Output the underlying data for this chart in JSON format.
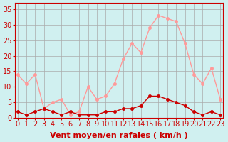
{
  "hours": [
    0,
    1,
    2,
    3,
    4,
    5,
    6,
    7,
    8,
    9,
    10,
    11,
    12,
    13,
    14,
    15,
    16,
    17,
    18,
    19,
    20,
    21,
    22,
    23
  ],
  "wind_avg": [
    2,
    1,
    2,
    3,
    2,
    1,
    2,
    1,
    1,
    1,
    2,
    2,
    3,
    3,
    4,
    7,
    7,
    6,
    5,
    4,
    2,
    1,
    2,
    1
  ],
  "wind_gust": [
    14,
    11,
    14,
    3,
    5,
    6,
    1,
    2,
    10,
    6,
    7,
    11,
    19,
    24,
    21,
    29,
    33,
    32,
    31,
    24,
    14,
    11,
    16,
    6
  ],
  "line_color_avg": "#cc0000",
  "line_color_gust": "#ff9999",
  "bg_color": "#d0f0f0",
  "grid_color": "#aaaaaa",
  "xlabel": "Vent moyen/en rafales ( km/h )",
  "ylabel_ticks": [
    0,
    5,
    10,
    15,
    20,
    25,
    30,
    35
  ],
  "ylim": [
    0,
    37
  ],
  "xlim": [
    -0.3,
    23.3
  ],
  "axis_fontsize": 8,
  "tick_fontsize": 7
}
